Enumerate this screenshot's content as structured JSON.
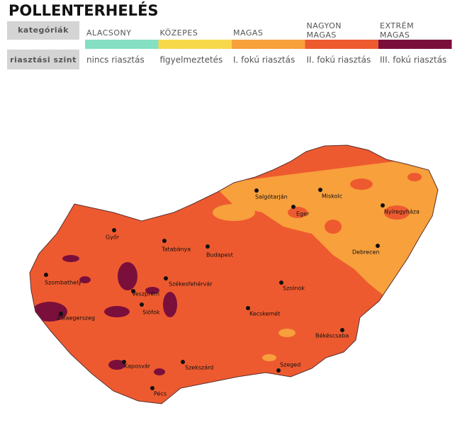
{
  "title": "POLLENTERHELÉS",
  "legend": {
    "row_labels": [
      "kategóriák",
      "riasztási szint"
    ],
    "items": [
      {
        "category": "ALACSONY",
        "alert": "nincs riasztás",
        "color": "#84dfc3"
      },
      {
        "category": "KÖZEPES",
        "alert": "figyelmeztetés",
        "color": "#f8d84b"
      },
      {
        "category": "MAGAS",
        "alert": "I. fokú riasztás",
        "color": "#f7a03c"
      },
      {
        "category": "NAGYON MAGAS",
        "alert": "II. fokú riasztás",
        "color": "#ee5a2f"
      },
      {
        "category": "EXTRÉM MAGAS",
        "alert": "III. fokú riasztás",
        "color": "#7a0f3c"
      }
    ]
  },
  "cities": [
    "Győr",
    "Tatabánya",
    "Budapest",
    "Salgótarján",
    "Eger",
    "Miskolc",
    "Nyíregyháza",
    "Debrecen",
    "Szombathely",
    "Veszprém",
    "Székesfehérvár",
    "Siófok",
    "Szolnok",
    "Zalaegerszeg",
    "Kecskemét",
    "Békéscsaba",
    "Kaposvár",
    "Szekszárd",
    "Szeged",
    "Pécs"
  ]
}
